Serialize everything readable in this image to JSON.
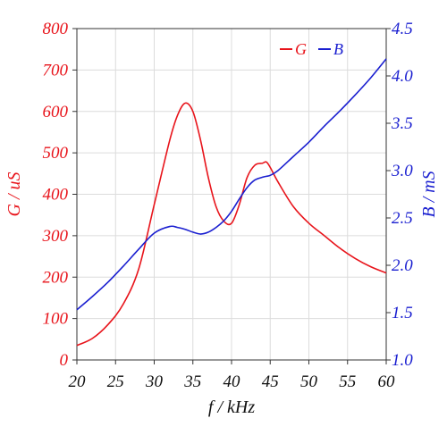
{
  "chart_data": {
    "type": "line",
    "x": [
      20,
      22,
      24,
      26,
      28,
      30,
      32,
      33,
      34,
      35,
      36,
      37,
      38,
      39,
      40,
      41,
      42,
      43,
      44,
      44.5,
      45,
      46,
      48,
      50,
      52,
      54,
      56,
      58,
      60
    ],
    "xlabel": "f / kHz",
    "xlim": [
      20,
      60
    ],
    "xticks": [
      "20",
      "25",
      "30",
      "35",
      "40",
      "45",
      "50",
      "55",
      "60"
    ],
    "grid": true,
    "legend_position": "top-right",
    "series": [
      {
        "name": "G",
        "axis": "left",
        "color": "#e8141b",
        "values": [
          35,
          52,
          85,
          135,
          220,
          375,
          530,
          590,
          620,
          600,
          530,
          440,
          370,
          335,
          330,
          375,
          440,
          470,
          475,
          478,
          465,
          430,
          370,
          330,
          300,
          270,
          245,
          225,
          210
        ]
      },
      {
        "name": "B",
        "axis": "right",
        "color": "#1a1fd0",
        "values": [
          1.53,
          1.67,
          1.82,
          1.99,
          2.17,
          2.34,
          2.41,
          2.4,
          2.38,
          2.35,
          2.33,
          2.35,
          2.4,
          2.47,
          2.57,
          2.7,
          2.82,
          2.9,
          2.93,
          2.94,
          2.95,
          3.0,
          3.15,
          3.3,
          3.47,
          3.63,
          3.8,
          3.98,
          4.18
        ]
      }
    ],
    "left_axis": {
      "label": "G / uS",
      "ylim": [
        0,
        800
      ],
      "ticks": [
        "0",
        "100",
        "200",
        "300",
        "400",
        "500",
        "600",
        "700",
        "800"
      ],
      "color": "#e8141b"
    },
    "right_axis": {
      "label": "B / mS",
      "ylim": [
        1.0,
        4.5
      ],
      "ticks": [
        "1.0",
        "1.5",
        "2.0",
        "2.5",
        "3.0",
        "3.5",
        "4.0",
        "4.5"
      ],
      "color": "#1a1fd0"
    }
  }
}
